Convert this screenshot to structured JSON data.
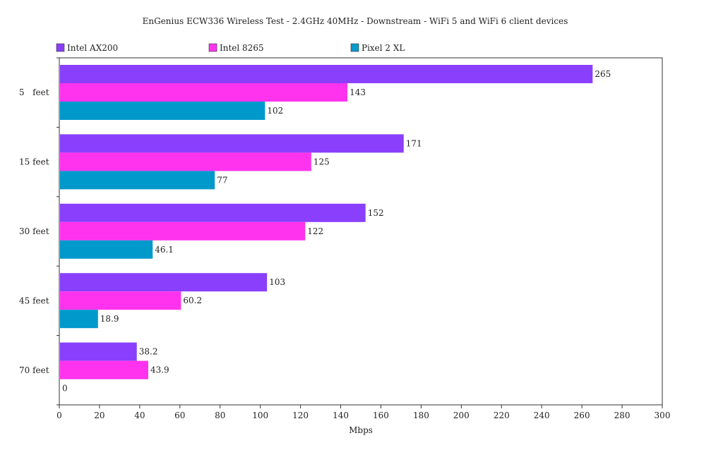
{
  "chart_data": {
    "type": "bar",
    "orientation": "horizontal",
    "title": "EnGenius ECW336 Wireless Test - 2.4GHz 40MHz - Downstream - WiFi 5 and WiFi 6 client devices",
    "xlabel": "Mbps",
    "ylabel": "",
    "categories": [
      "5   feet",
      "15 feet",
      "30 feet",
      "45 feet",
      "70 feet"
    ],
    "xlim": [
      0,
      300
    ],
    "x_ticks": [
      "0",
      "20",
      "40",
      "60",
      "80",
      "100",
      "120",
      "140",
      "160",
      "180",
      "200",
      "220",
      "240",
      "260",
      "280",
      "300"
    ],
    "grid": false,
    "legend_position": "top",
    "series": [
      {
        "name": "Intel AX200",
        "color": "#8a3ffc",
        "values": [
          265,
          171,
          152,
          103,
          38.2
        ],
        "labels": [
          "265",
          "171",
          "152",
          "103",
          "38.2"
        ]
      },
      {
        "name": "Intel 8265",
        "color": "#ff33ee",
        "values": [
          143,
          125,
          122,
          60.2,
          43.9
        ],
        "labels": [
          "143",
          "125",
          "122",
          "60.2",
          "43.9"
        ]
      },
      {
        "name": "Pixel 2 XL",
        "color": "#0099cc",
        "values": [
          102,
          77,
          46.1,
          18.9,
          0
        ],
        "labels": [
          "102",
          "77",
          "46.1",
          "18.9",
          "0"
        ]
      }
    ]
  }
}
